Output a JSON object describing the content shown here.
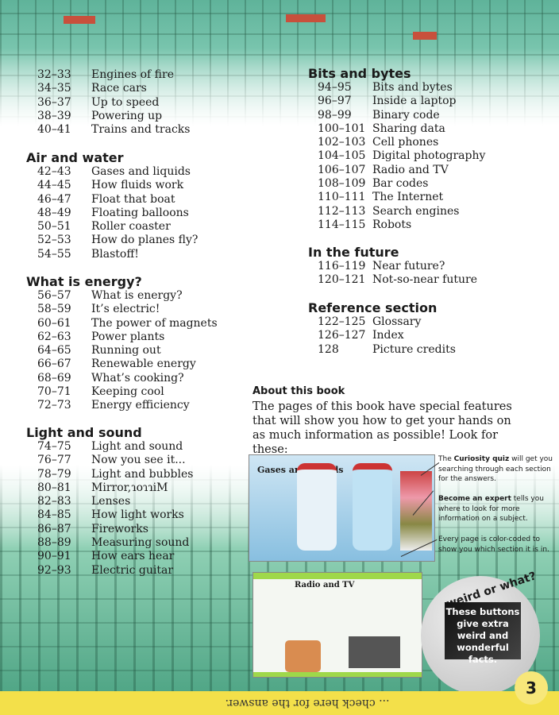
{
  "left_column": {
    "top_entries": [
      [
        "32–33",
        "Engines of fire"
      ],
      [
        "34–35",
        "Race cars"
      ],
      [
        "36–37",
        "Up to speed"
      ],
      [
        "38–39",
        "Powering up"
      ],
      [
        "40–41",
        "Trains and tracks"
      ]
    ],
    "sections": [
      {
        "title": "Air and water",
        "entries": [
          [
            "42–43",
            "Gases and liquids"
          ],
          [
            "44–45",
            "How fluids work"
          ],
          [
            "46–47",
            "Float that boat"
          ],
          [
            "48–49",
            "Floating balloons"
          ],
          [
            "50–51",
            "Roller coaster"
          ],
          [
            "52–53",
            "How do planes fly?"
          ],
          [
            "54–55",
            "Blastoff!"
          ]
        ]
      },
      {
        "title": "What is energy?",
        "entries": [
          [
            "56–57",
            "What is energy?"
          ],
          [
            "58–59",
            "It’s electric!"
          ],
          [
            "60–61",
            "The power of magnets"
          ],
          [
            "62–63",
            "Power plants"
          ],
          [
            "64–65",
            "Running out"
          ],
          [
            "66–67",
            "Renewable energy"
          ],
          [
            "68–69",
            "What’s cooking?"
          ],
          [
            "70–71",
            "Keeping cool"
          ],
          [
            "72–73",
            "Energy efficiency"
          ]
        ]
      },
      {
        "title": "Light and sound",
        "entries": [
          [
            "74–75",
            "Light and sound"
          ],
          [
            "76–77",
            "Now you see it..."
          ],
          [
            "78–79",
            "Light and bubbles"
          ],
          [
            "80–81",
            "Mirror,ɿoɿɿiM"
          ],
          [
            "82–83",
            "Lenses"
          ],
          [
            "84–85",
            "How light works"
          ],
          [
            "86–87",
            "Fireworks"
          ],
          [
            "88–89",
            "Measuring sound"
          ],
          [
            "90–91",
            "How ears hear"
          ],
          [
            "92–93",
            "Electric guitar"
          ]
        ]
      }
    ]
  },
  "right_column": {
    "sections": [
      {
        "title": "Bits and bytes",
        "entries": [
          [
            "94–95",
            "Bits and bytes"
          ],
          [
            "96–97",
            "Inside a laptop"
          ],
          [
            "98–99",
            "Binary code"
          ],
          [
            "100–101",
            "Sharing data"
          ],
          [
            "102–103",
            "Cell phones"
          ],
          [
            "104–105",
            "Digital photography"
          ],
          [
            "106–107",
            "Radio and TV"
          ],
          [
            "108–109",
            "Bar codes"
          ],
          [
            "110–111",
            "The Internet"
          ],
          [
            "112–113",
            "Search engines"
          ],
          [
            "114–115",
            "Robots"
          ]
        ]
      },
      {
        "title": "In the future",
        "entries": [
          [
            "116–119",
            "Near future?"
          ],
          [
            "120–121",
            "Not-so-near future"
          ]
        ]
      },
      {
        "title": "Reference section",
        "entries": [
          [
            "122–125",
            "Glossary"
          ],
          [
            "126–127",
            "Index"
          ],
          [
            "128",
            "Picture credits"
          ]
        ]
      }
    ]
  },
  "about": {
    "title": "About this book",
    "body": "The pages of this book have special features that will show you how to get your hands on as much information as possible! Look for these:",
    "notes": [
      {
        "bold": "Curiosity quiz",
        "pre": "The ",
        "post": " will get you searching through each section for the answers."
      },
      {
        "bold": "Become an expert",
        "pre": "",
        "post": " tells you where to look for more information on a subject."
      },
      {
        "bold": "",
        "pre": "Every page is color-coded to show you which section it is in.",
        "post": ""
      }
    ],
    "sample_spread_1_title": "Gases and liquids",
    "sample_spread_2_title": "Radio and TV"
  },
  "weird_button": {
    "label": "weird or what?",
    "text": "These buttons give extra weird and wonderful facts."
  },
  "footer": {
    "answer_text": "... check here for the answer.",
    "page_number": "3"
  },
  "colors": {
    "band": "#f3e04a",
    "circuit": "#5fb39a",
    "chip": "#c8503c"
  }
}
